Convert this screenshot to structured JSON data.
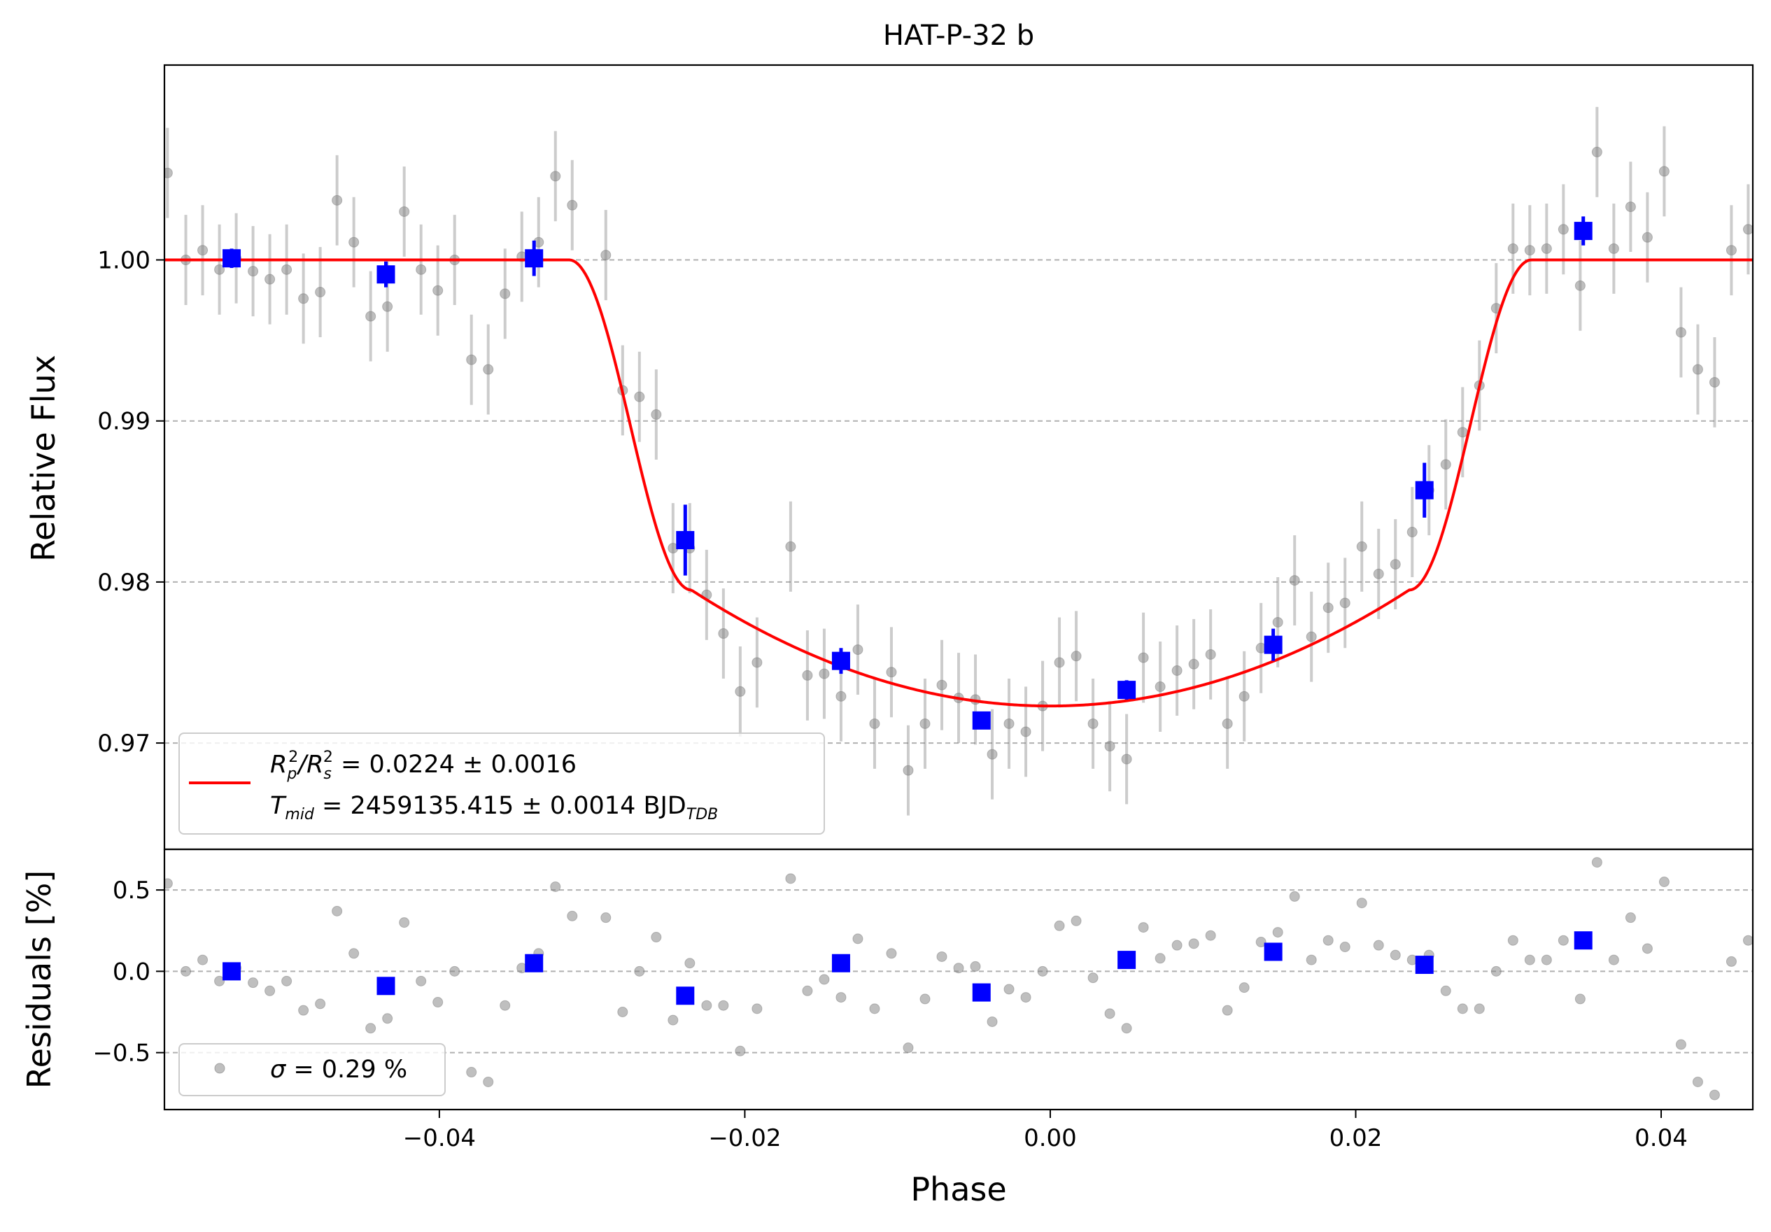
{
  "chart_data": [
    {
      "panel": "main",
      "type": "scatter",
      "title": "HAT-P-32 b",
      "xlabel": "",
      "ylabel": "Relative Flux",
      "xlim": [
        -0.058,
        0.046
      ],
      "ylim": [
        0.9634,
        1.0121
      ],
      "grid": "horizontal dashed",
      "yticks": [
        0.97,
        0.98,
        0.99,
        1.0
      ],
      "ytick_labels": [
        "0.97",
        "0.98",
        "0.99",
        "1.00"
      ],
      "legend_position": "lower-left",
      "legend": {
        "ratio_line": "R_p^2/R_s^2 = 0.0224 ± 0.0016",
        "tmid_line": "T_mid = 2459135.415 ± 0.0014 BJD_TDB",
        "ratio_sym": "R",
        "ratio_sub_p": "p",
        "ratio_sup": "2",
        "ratio_slash": "/R",
        "ratio_sub_s": "s",
        "ratio_value": " = 0.0224 ± 0.0016",
        "tmid_sym": "T",
        "tmid_sub": "mid",
        "tmid_value": " = 2459135.415 ± 0.0014 BJD",
        "tmid_unit_sub": "TDB"
      },
      "model": {
        "color": "#ff0000",
        "depth": 0.0277,
        "ingress_start": -0.0315,
        "ingress_end": -0.0235,
        "egress_start": 0.0235,
        "egress_end": 0.0315
      },
      "raw_points": {
        "color": "#808080",
        "x": [
          -0.0578,
          -0.0566,
          -0.0555,
          -0.0544,
          -0.0533,
          -0.0522,
          -0.0511,
          -0.05,
          -0.0489,
          -0.0478,
          -0.0467,
          -0.0456,
          -0.0445,
          -0.0434,
          -0.0423,
          -0.0412,
          -0.0401,
          -0.039,
          -0.0379,
          -0.0368,
          -0.0357,
          -0.0346,
          -0.0335,
          -0.0324,
          -0.0313,
          -0.0291,
          -0.028,
          -0.0269,
          -0.0258,
          -0.0247,
          -0.0236,
          -0.0225,
          -0.0214,
          -0.0203,
          -0.0192,
          -0.017,
          -0.0159,
          -0.0148,
          -0.0137,
          -0.0126,
          -0.0115,
          -0.0104,
          -0.0093,
          -0.0082,
          -0.0071,
          -0.006,
          -0.0049,
          -0.0038,
          -0.0027,
          -0.0016,
          -0.0005,
          0.0006,
          0.0017,
          0.0028,
          0.0039,
          0.005,
          0.0061,
          0.0072,
          0.0083,
          0.0094,
          0.0105,
          0.0116,
          0.0127,
          0.0138,
          0.0149,
          0.016,
          0.0171,
          0.0182,
          0.0193,
          0.0204,
          0.0215,
          0.0226,
          0.0237,
          0.0248,
          0.0259,
          0.027,
          0.0281,
          0.0292,
          0.0303,
          0.0314,
          0.0325,
          0.0336,
          0.0347,
          0.0358,
          0.0369,
          0.038,
          0.0391,
          0.0402,
          0.0413,
          0.0424,
          0.0435,
          0.0446,
          0.0457
        ],
        "y": [
          1.0054,
          1.0,
          1.0006,
          0.9994,
          1.0001,
          0.9993,
          0.9988,
          0.9994,
          0.9976,
          0.998,
          1.0037,
          1.0011,
          0.9965,
          0.9971,
          1.003,
          0.9994,
          0.9981,
          1.0,
          0.9938,
          0.9932,
          0.9979,
          1.0002,
          1.0011,
          1.0052,
          1.0034,
          1.0003,
          0.9919,
          0.9915,
          0.9904,
          0.9821,
          0.9821,
          0.9792,
          0.9768,
          0.9732,
          0.975,
          0.9822,
          0.9742,
          0.9743,
          0.9729,
          0.9758,
          0.9712,
          0.9744,
          0.9683,
          0.9712,
          0.9736,
          0.9728,
          0.9727,
          0.9693,
          0.9712,
          0.9707,
          0.9723,
          0.975,
          0.9754,
          0.9712,
          0.9698,
          0.969,
          0.9753,
          0.9735,
          0.9745,
          0.9749,
          0.9755,
          0.9712,
          0.9729,
          0.9759,
          0.9775,
          0.9801,
          0.9766,
          0.9784,
          0.9787,
          0.9822,
          0.9805,
          0.9811,
          0.9831,
          0.9857,
          0.9873,
          0.9893,
          0.9922,
          0.997,
          1.0007,
          1.0006,
          1.0007,
          1.0019,
          0.9984,
          1.0067,
          1.0007,
          1.0033,
          1.0014,
          1.0055,
          0.9955,
          0.9932,
          0.9924,
          1.0006,
          1.0019
        ],
        "yerr": 0.0028,
        "residuals": [
          0.54,
          0.0,
          0.07,
          -0.06,
          0.02,
          -0.07,
          -0.12,
          -0.06,
          -0.24,
          -0.2,
          0.37,
          0.11,
          -0.35,
          -0.29,
          0.3,
          -0.06,
          -0.19,
          0.0,
          -0.62,
          -0.68,
          -0.21,
          0.02,
          0.11,
          0.52,
          0.34,
          0.33,
          -0.25,
          0.0,
          0.21,
          -0.3,
          0.05,
          -0.21,
          -0.21,
          -0.49,
          -0.23,
          0.57,
          -0.12,
          -0.05,
          -0.16,
          0.2,
          -0.23,
          0.11,
          -0.47,
          -0.17,
          0.09,
          0.02,
          0.03,
          -0.31,
          -0.11,
          -0.16,
          0.0,
          0.28,
          0.31,
          -0.04,
          -0.26,
          -0.35,
          0.27,
          0.08,
          0.16,
          0.17,
          0.22,
          -0.24,
          -0.1,
          0.18,
          0.24,
          0.46,
          0.07,
          0.19,
          0.15,
          0.42,
          0.16,
          0.1,
          0.07,
          0.1,
          -0.12,
          -0.23,
          -0.23,
          0.0,
          0.19,
          0.07,
          0.07,
          0.19,
          -0.17,
          0.67,
          0.07,
          0.33,
          0.14,
          0.55,
          -0.45,
          -0.68,
          -0.76,
          0.06,
          0.19
        ]
      },
      "binned_points": {
        "color": "#0000ff",
        "x": [
          -0.0536,
          -0.0435,
          -0.0338,
          -0.0239,
          -0.0137,
          -0.0045,
          0.005,
          0.0146,
          0.0245,
          0.0349
        ],
        "y": [
          1.0001,
          0.9991,
          1.0001,
          0.9826,
          0.9751,
          0.9714,
          0.9733,
          0.9761,
          0.9857,
          1.0018
        ],
        "yerr": [
          0.0006,
          0.0008,
          0.0011,
          0.0022,
          0.0008,
          0.0005,
          0.0006,
          0.001,
          0.0017,
          0.0009
        ],
        "residuals": [
          0.0,
          -0.09,
          0.05,
          -0.15,
          0.05,
          -0.13,
          0.07,
          0.12,
          0.04,
          0.19
        ]
      }
    },
    {
      "panel": "residuals",
      "type": "scatter",
      "xlabel": "Phase",
      "ylabel": "Residuals [%]",
      "xlim": [
        -0.058,
        0.046
      ],
      "ylim": [
        -0.85,
        0.75
      ],
      "grid": "horizontal dashed",
      "xticks": [
        -0.04,
        -0.02,
        0.0,
        0.02,
        0.04
      ],
      "xtick_labels": [
        "−0.04",
        "−0.02",
        "0.00",
        "0.02",
        "0.04"
      ],
      "yticks": [
        -0.5,
        0.0,
        0.5
      ],
      "ytick_labels": [
        "−0.5",
        "0.0",
        "0.5"
      ],
      "legend_position": "lower-left",
      "legend": {
        "sigma_line": "σ = 0.29 %",
        "sigma_sym": "σ",
        "sigma_value": " = 0.29 %"
      }
    }
  ]
}
